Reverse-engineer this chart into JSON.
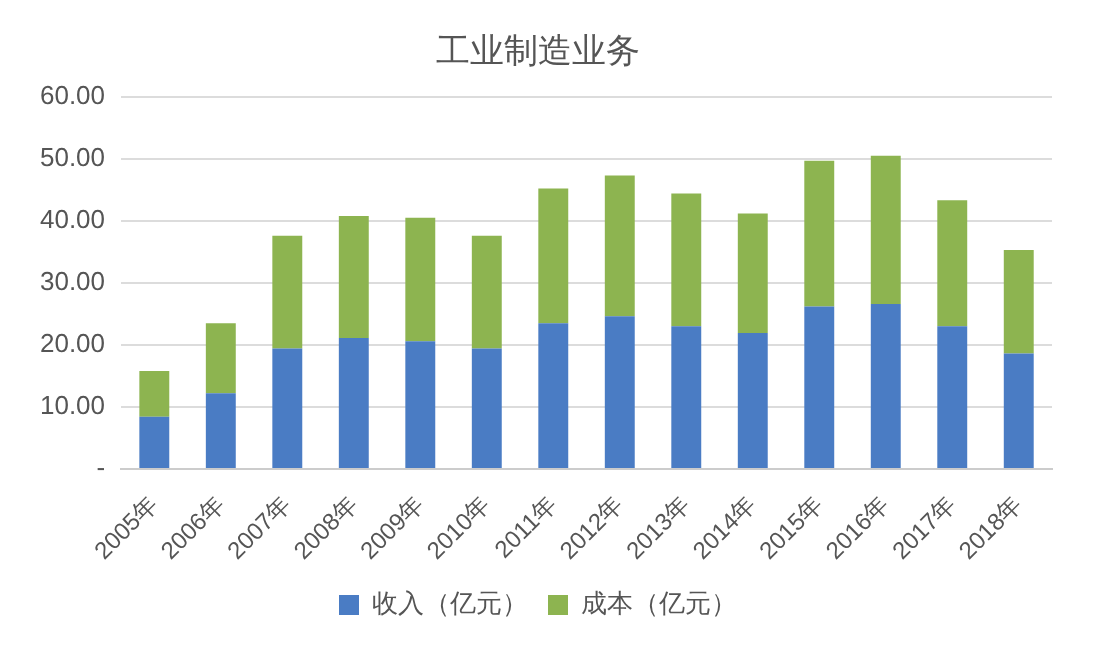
{
  "chart_data": {
    "type": "bar",
    "title": "工业制造业务",
    "stacked": true,
    "categories": [
      "2005年",
      "2006年",
      "2007年",
      "2008年",
      "2009年",
      "2010年",
      "2011年",
      "2012年",
      "2013年",
      "2014年",
      "2015年",
      "2016年",
      "2017年",
      "2018年"
    ],
    "series": [
      {
        "name": "收入（亿元）",
        "color": "#4a7cc4",
        "values": [
          8.4,
          12.2,
          19.4,
          21.1,
          20.6,
          19.4,
          23.5,
          24.6,
          23.0,
          21.9,
          26.2,
          26.6,
          23.0,
          18.6
        ]
      },
      {
        "name": "成本（亿元）",
        "color": "#8db450",
        "values": [
          7.4,
          11.3,
          18.2,
          19.7,
          19.9,
          18.2,
          21.7,
          22.7,
          21.4,
          19.3,
          23.5,
          23.9,
          20.3,
          16.7
        ]
      }
    ],
    "ylim": [
      0,
      60
    ],
    "yticks": [
      {
        "value": 0,
        "label": "-"
      },
      {
        "value": 10,
        "label": "10.00"
      },
      {
        "value": 20,
        "label": "20.00"
      },
      {
        "value": 30,
        "label": "30.00"
      },
      {
        "value": 40,
        "label": "40.00"
      },
      {
        "value": 50,
        "label": "50.00"
      },
      {
        "value": 60,
        "label": "60.00"
      }
    ],
    "grid": "y",
    "legend": "bottom"
  }
}
